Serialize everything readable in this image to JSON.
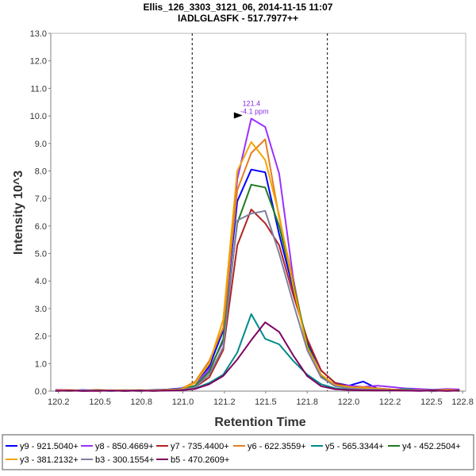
{
  "chart_data": {
    "type": "line",
    "title": "Ellis_126_3303_3121_06, 2014-11-15 11:07",
    "subtitle": "IADLGLASFK - 517.7977++",
    "xlabel": "Retention Time",
    "ylabel": "Intensity 10^3",
    "xlim": [
      120.15,
      122.82
    ],
    "ylim": [
      0,
      13
    ],
    "x_ticks": [
      "120.2",
      "120.5",
      "120.8",
      "121.0",
      "121.2",
      "121.5",
      "121.8",
      "122.0",
      "122.2",
      "122.5",
      "122.8"
    ],
    "x_tick_values": [
      120.2,
      120.467,
      120.733,
      121.0,
      121.267,
      121.533,
      121.8,
      122.067,
      122.333,
      122.6,
      122.8
    ],
    "y_ticks": [
      "0.0",
      "1.0",
      "2.0",
      "3.0",
      "4.0",
      "5.0",
      "6.0",
      "7.0",
      "8.0",
      "9.0",
      "10.0",
      "11.0",
      "12.0",
      "13.0"
    ],
    "y_tick_values": [
      0,
      1,
      2,
      3,
      4,
      5,
      6,
      7,
      8,
      9,
      10,
      11,
      12,
      13
    ],
    "grid": false,
    "legend_position": "bottom",
    "boundaries": [
      121.06,
      121.93
    ],
    "annotation": {
      "x": 121.4,
      "y": 9.9,
      "line1": "121.4",
      "line2": "-4.1 ppm",
      "color": "#8a2be2"
    },
    "x": [
      120.18,
      120.27,
      120.36,
      120.45,
      120.54,
      120.63,
      120.72,
      120.81,
      120.9,
      120.99,
      121.08,
      121.17,
      121.26,
      121.35,
      121.44,
      121.53,
      121.62,
      121.71,
      121.8,
      121.89,
      121.98,
      122.07,
      122.16,
      122.25,
      122.34,
      122.43,
      122.52,
      122.61,
      122.7,
      122.78
    ],
    "series": [
      {
        "name": "y9 - 921.5040+",
        "color": "#0000ff",
        "values": [
          0.03,
          0.02,
          0.04,
          0.02,
          0.01,
          0.03,
          0.02,
          0.04,
          0.06,
          0.1,
          0.3,
          0.9,
          2.2,
          6.9,
          8.05,
          7.95,
          5.7,
          3.7,
          1.8,
          0.75,
          0.3,
          0.2,
          0.35,
          0.1,
          0.06,
          0.04,
          0.05,
          0.03,
          0.06,
          0.04
        ]
      },
      {
        "name": "y8 - 850.4669+",
        "color": "#9b30ff",
        "values": [
          0.05,
          0.04,
          0.02,
          0.03,
          0.02,
          0.01,
          0.03,
          0.02,
          0.02,
          0.05,
          0.2,
          0.8,
          1.8,
          7.7,
          9.9,
          9.6,
          7.9,
          4.1,
          1.5,
          0.5,
          0.25,
          0.2,
          0.15,
          0.2,
          0.15,
          0.1,
          0.08,
          0.05,
          0.08,
          0.06
        ]
      },
      {
        "name": "y7 - 735.4400+",
        "color": "#b22222",
        "values": [
          0.02,
          0.03,
          0.01,
          0.02,
          0.03,
          0.02,
          0.01,
          0.02,
          0.03,
          0.06,
          0.15,
          0.5,
          1.5,
          5.3,
          6.6,
          6.1,
          5.3,
          3.5,
          1.9,
          0.75,
          0.3,
          0.15,
          0.1,
          0.05,
          0.03,
          0.02,
          0.03,
          0.01,
          0.02,
          0.03
        ]
      },
      {
        "name": "y6 - 622.3559+",
        "color": "#e67e22",
        "values": [
          0.04,
          0.02,
          0.03,
          0.05,
          0.02,
          0.04,
          0.02,
          0.03,
          0.04,
          0.08,
          0.35,
          1.1,
          2.3,
          7.3,
          8.65,
          9.15,
          6.3,
          4.0,
          1.65,
          0.55,
          0.2,
          0.12,
          0.15,
          0.1,
          0.06,
          0.05,
          0.04,
          0.03,
          0.05,
          0.02
        ]
      },
      {
        "name": "y5 - 565.3344+",
        "color": "#008b8b",
        "values": [
          0.01,
          0.02,
          0.01,
          0.02,
          0.01,
          0.02,
          0.01,
          0.02,
          0.03,
          0.04,
          0.1,
          0.3,
          0.6,
          1.4,
          2.8,
          1.9,
          1.7,
          1.1,
          0.6,
          0.25,
          0.1,
          0.05,
          0.04,
          0.03,
          0.02,
          0.08,
          0.02,
          0.01,
          0.02,
          0.01
        ]
      },
      {
        "name": "y4 - 452.2504+",
        "color": "#1e7b1e",
        "values": [
          0.02,
          0.01,
          0.02,
          0.03,
          0.02,
          0.01,
          0.02,
          0.03,
          0.02,
          0.06,
          0.2,
          0.7,
          1.9,
          6.1,
          7.5,
          7.4,
          6.0,
          3.9,
          1.7,
          0.55,
          0.2,
          0.1,
          0.06,
          0.04,
          0.05,
          0.03,
          0.02,
          0.04,
          0.03,
          0.02
        ]
      },
      {
        "name": "y3 - 381.2132+",
        "color": "#f0a500",
        "values": [
          0.03,
          0.04,
          0.02,
          0.01,
          0.03,
          0.02,
          0.04,
          0.02,
          0.05,
          0.07,
          0.3,
          1.0,
          2.6,
          8.0,
          9.05,
          8.4,
          6.4,
          3.8,
          1.6,
          0.6,
          0.22,
          0.15,
          0.1,
          0.08,
          0.05,
          0.04,
          0.03,
          0.02,
          0.04,
          0.03
        ]
      },
      {
        "name": "b3 - 300.1554+",
        "color": "#7f7f9f",
        "values": [
          0.02,
          0.01,
          0.03,
          0.02,
          0.01,
          0.02,
          0.03,
          0.01,
          0.02,
          0.05,
          0.15,
          0.6,
          1.6,
          6.2,
          6.45,
          6.55,
          5.0,
          3.2,
          1.5,
          0.5,
          0.18,
          0.1,
          0.07,
          0.05,
          0.03,
          0.02,
          0.03,
          0.02,
          0.01,
          0.02
        ]
      },
      {
        "name": "b5 - 470.2609+",
        "color": "#800060",
        "values": [
          0.01,
          0.02,
          0.01,
          0.01,
          0.02,
          0.01,
          0.02,
          0.01,
          0.02,
          0.03,
          0.08,
          0.25,
          0.55,
          1.15,
          1.85,
          2.5,
          2.15,
          1.3,
          0.55,
          0.18,
          0.07,
          0.04,
          0.03,
          0.02,
          0.03,
          0.02,
          0.01,
          0.02,
          0.01,
          0.02
        ]
      }
    ]
  }
}
